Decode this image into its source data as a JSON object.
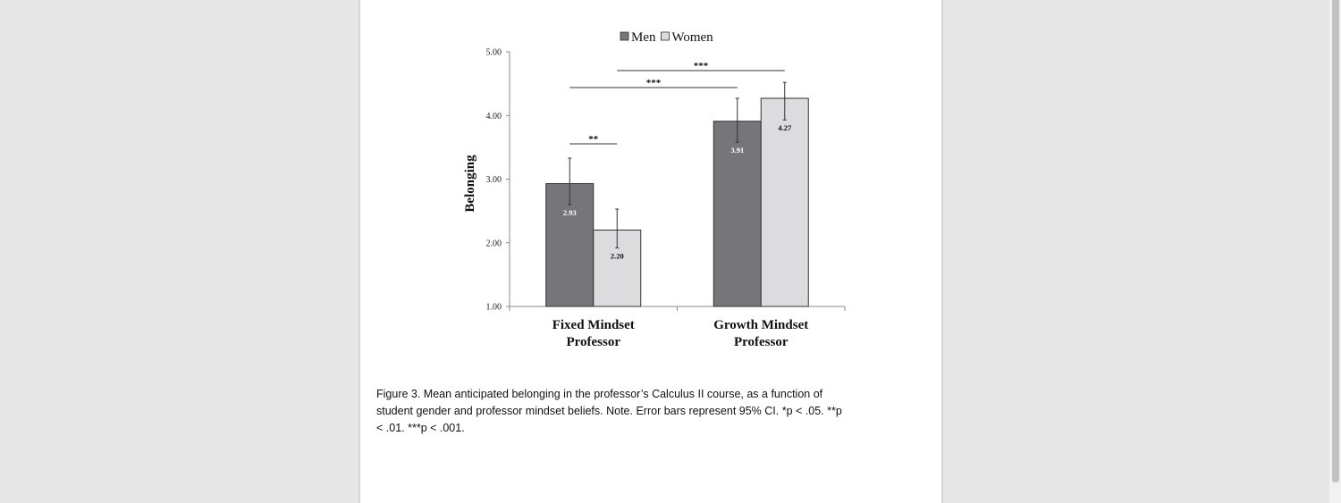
{
  "figure": {
    "caption": "Figure 3. Mean anticipated belonging in the professor’s Calculus II course, as a function of student gender and professor mindset beliefs. Note. Error bars represent 95% CI. *p < .05. **p < .01. ***p < .001."
  },
  "chart_data": {
    "type": "bar",
    "categories": [
      "Fixed Mindset\nProfessor",
      "Growth Mindset\nProfessor"
    ],
    "series": [
      {
        "name": "Men",
        "values": [
          2.93,
          3.91
        ],
        "ci_low": [
          2.6,
          3.58
        ],
        "ci_high": [
          3.33,
          4.27
        ],
        "color": "#76767a"
      },
      {
        "name": "Women",
        "values": [
          2.2,
          4.27
        ],
        "ci_low": [
          1.92,
          3.93
        ],
        "ci_high": [
          2.53,
          4.52
        ],
        "color": "#dcdcdf"
      }
    ],
    "ylabel": "Belonging",
    "xlabel": "",
    "ylim": [
      1.0,
      5.0
    ],
    "yticks": [
      "1.00",
      "2.00",
      "3.00",
      "4.00",
      "5.00"
    ],
    "grid": false,
    "legend": "top-center",
    "significance": [
      {
        "label": "**",
        "from": "Fixed Mindset Men",
        "to": "Fixed Mindset Women"
      },
      {
        "label": "***",
        "from": "Fixed Mindset Men",
        "to": "Growth Mindset Men"
      },
      {
        "label": "***",
        "from": "Fixed Mindset Women",
        "to": "Growth Mindset Women"
      }
    ]
  }
}
